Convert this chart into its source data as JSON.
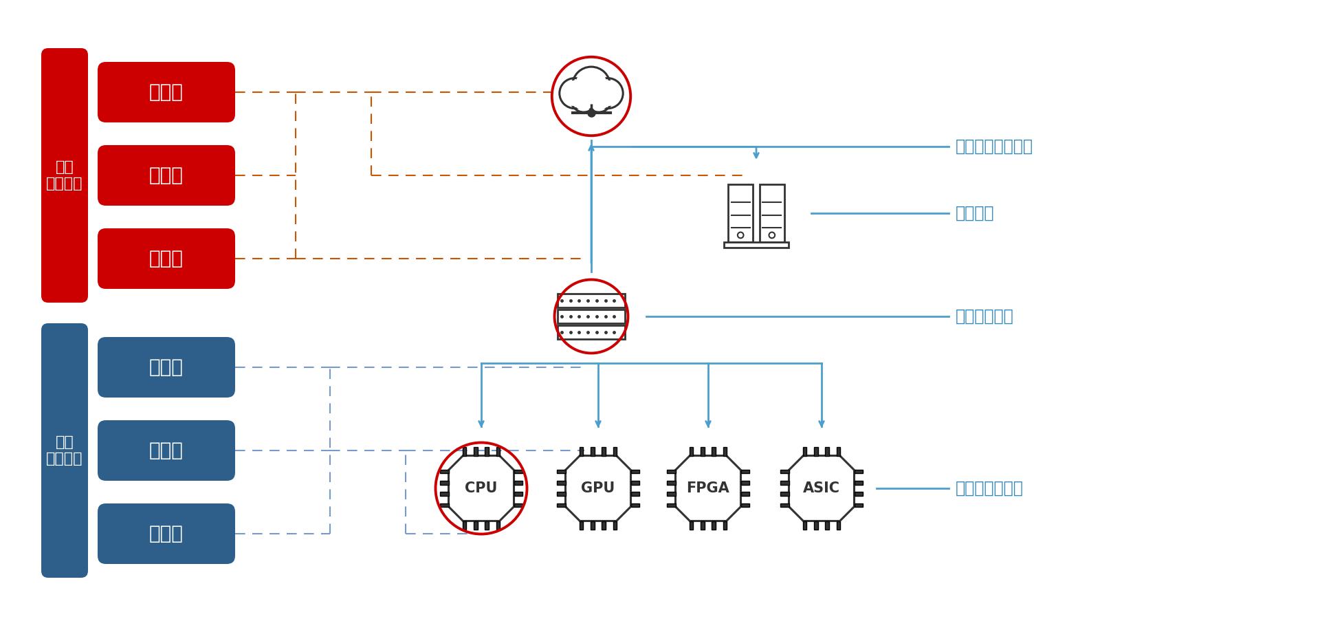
{
  "bg_color": "#ffffff",
  "red_color": "#cc0000",
  "blue_color": "#2e5f8a",
  "arrow_blue": "#4a9fcc",
  "line_red_dash": "#cc5500",
  "line_blue_dash": "#7799cc",
  "text_blue": "#3388bb",
  "dark_gray": "#333333",
  "learning_label": "学習\nプロセス",
  "inference_label": "推論\nプロセス",
  "learning_steps": [
    "収　集",
    "加　工",
    "実　施"
  ],
  "inference_steps": [
    "収　集",
    "加　工",
    "実　施"
  ],
  "cloud_label": "クラウドサービス",
  "onprem_label": "オンプレ",
  "edge_label": "エッジサーバ",
  "enddev_label": "エンドデバイス",
  "device_labels": [
    "CPU",
    "GPU",
    "FPGA",
    "ASIC"
  ]
}
